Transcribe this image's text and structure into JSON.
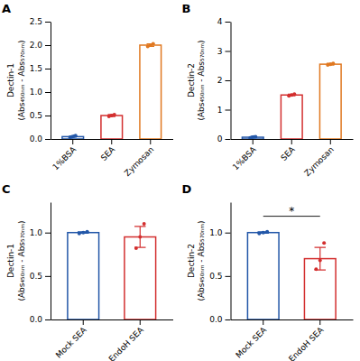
{
  "chart_data": [
    {
      "type": "bar",
      "title": "A",
      "ylabel": "Dectin-1\n(Abs₄₅₀ₙₘ - Abs₅₇₀ₙₘ)",
      "categories": [
        "1%BSA",
        "SEA",
        "Zymosan"
      ],
      "values": [
        0.05,
        0.5,
        2.0
      ],
      "colors": [
        "#2357a8",
        "#d32f2f",
        "#e07820"
      ],
      "errors": [
        0.012,
        0.02,
        0.025
      ],
      "points": [
        [
          0.035,
          0.05,
          0.06,
          0.07
        ],
        [
          0.48,
          0.5,
          0.52
        ],
        [
          1.97,
          2.0,
          2.03
        ]
      ],
      "ylim": [
        0,
        2.5
      ],
      "yticks": [
        {
          "value": 0,
          "label": "0.0"
        },
        0.5,
        {
          "value": 1,
          "label": "1.0"
        },
        1.5,
        {
          "value": 2,
          "label": "2.0"
        },
        2.5
      ],
      "grid": false
    },
    {
      "type": "bar",
      "title": "B",
      "ylabel": "Dectin-2\n(Abs₄₅₀ₙₘ - Abs₅₇₀ₙₘ)",
      "categories": [
        "1%BSA",
        "SEA",
        "Zymosan"
      ],
      "values": [
        0.06,
        1.5,
        2.55
      ],
      "colors": [
        "#2357a8",
        "#d32f2f",
        "#e07820"
      ],
      "errors": [
        0.012,
        0.03,
        0.03
      ],
      "points": [
        [
          0.04,
          0.06,
          0.07,
          0.08
        ],
        [
          1.47,
          1.5,
          1.53
        ],
        [
          2.52,
          2.55,
          2.58
        ]
      ],
      "ylim": [
        0,
        4
      ],
      "yticks": [
        0,
        1,
        2,
        3,
        4
      ],
      "grid": false
    },
    {
      "type": "bar",
      "title": "C",
      "ylabel": "Dectin-1\n(Abs₄₅₀ₙₘ - Abs₅₇₀ₙₘ)",
      "categories": [
        "Mock SEA",
        "EndoH SEA"
      ],
      "values": [
        1.0,
        0.95
      ],
      "colors": [
        "#2357a8",
        "#d32f2f"
      ],
      "errors": [
        0.008,
        0.12
      ],
      "points": [
        [
          0.99,
          1.0,
          1.01
        ],
        [
          0.82,
          0.95,
          1.1
        ]
      ],
      "ylim": [
        0,
        1.35
      ],
      "yticks": [
        {
          "value": 0,
          "label": "0.0"
        },
        0.5,
        {
          "value": 1,
          "label": "1.0"
        }
      ],
      "grid": false
    },
    {
      "type": "bar",
      "title": "D",
      "ylabel": "Dectin-2\n(Abs₄₅₀ₙₘ - Abs₅₇₀ₙₘ)",
      "categories": [
        "Mock SEA",
        "EndoH SEA"
      ],
      "values": [
        1.0,
        0.7
      ],
      "colors": [
        "#2357a8",
        "#d32f2f"
      ],
      "errors": [
        0.008,
        0.13
      ],
      "points": [
        [
          0.99,
          1.0,
          1.01
        ],
        [
          0.58,
          0.68,
          0.88
        ]
      ],
      "ylim": [
        0,
        1.35
      ],
      "yticks": [
        {
          "value": 0,
          "label": "0.0"
        },
        0.5,
        {
          "value": 1,
          "label": "1.0"
        }
      ],
      "annotations": [
        {
          "text": "*",
          "between": [
            "Mock SEA",
            "EndoH SEA"
          ]
        }
      ],
      "grid": false
    }
  ]
}
